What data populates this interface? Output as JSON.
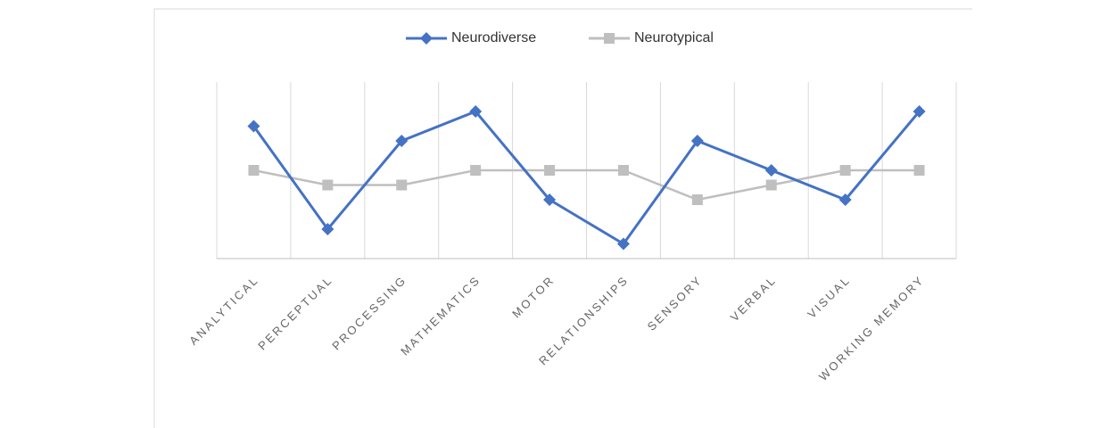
{
  "chart_data": {
    "type": "line",
    "categories": [
      "ANALYTICAL",
      "PERCEPTUAL",
      "PROCESSING",
      "MATHEMATICS",
      "MOTOR",
      "RELATIONSHIPS",
      "SENSORY",
      "VERBAL",
      "VISUAL",
      "WORKING MEMORY"
    ],
    "series": [
      {
        "name": "Neurodiverse",
        "color": "#4472c4",
        "marker": "diamond",
        "values": [
          9,
          2,
          8,
          10,
          4,
          1,
          8,
          6,
          4,
          10
        ]
      },
      {
        "name": "Neurotypical",
        "color": "#bfbfbf",
        "marker": "square",
        "values": [
          6,
          5,
          5,
          6,
          6,
          6,
          4,
          5,
          6,
          6
        ]
      }
    ],
    "ylim": [
      0,
      12
    ],
    "grid": true,
    "legend": "top"
  }
}
